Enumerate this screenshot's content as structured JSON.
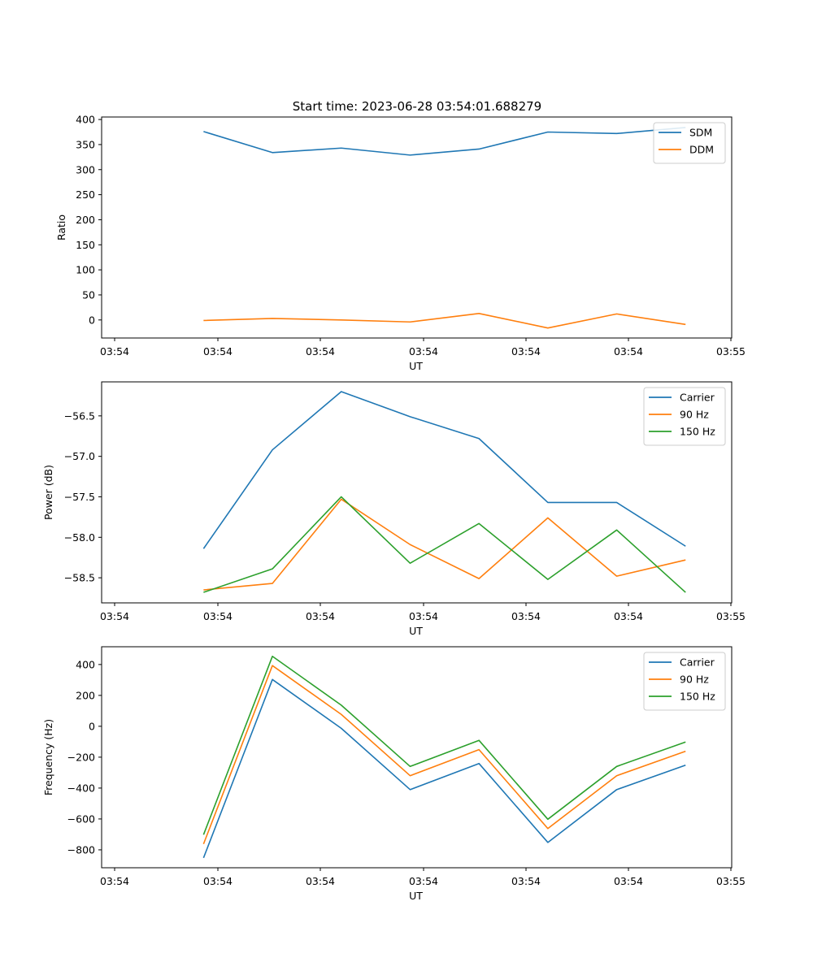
{
  "figure": {
    "title": "Start time: 2023-06-28 03:54:01.688279"
  },
  "chart_data": [
    {
      "type": "line",
      "xlabel": "UT",
      "ylabel": "Ratio",
      "xtick_labels": [
        "03:54",
        "03:54",
        "03:54",
        "03:54",
        "03:54",
        "03:54",
        "03:54"
      ],
      "xtick_last": "03:55",
      "ylim": [
        -36,
        405
      ],
      "yticks": [
        0,
        50,
        100,
        150,
        200,
        250,
        300,
        350,
        400
      ],
      "ytick_labels": [
        "0",
        "50",
        "100",
        "150",
        "200",
        "250",
        "300",
        "350",
        "400"
      ],
      "x_span": [
        -1.48,
        7.67
      ],
      "x_points": [
        0,
        1,
        2,
        3,
        4,
        5,
        6,
        7
      ],
      "legend": "top-right",
      "grid": false,
      "series": [
        {
          "name": "SDM",
          "color": "#1f77b4",
          "values": [
            376,
            334,
            343,
            329,
            341,
            375,
            372,
            384
          ]
        },
        {
          "name": "DDM",
          "color": "#ff7f0e",
          "values": [
            -1,
            3,
            0,
            -4,
            13,
            -16,
            12,
            -9
          ]
        }
      ]
    },
    {
      "type": "line",
      "xlabel": "UT",
      "ylabel": "Power (dB)",
      "xtick_labels": [
        "03:54",
        "03:54",
        "03:54",
        "03:54",
        "03:54",
        "03:54",
        "03:54"
      ],
      "xtick_last": "03:55",
      "ylim": [
        -58.81,
        -56.08
      ],
      "yticks": [
        -58.5,
        -58.0,
        -57.5,
        -57.0,
        -56.5
      ],
      "ytick_labels": [
        "−58.5",
        "−58.0",
        "−57.5",
        "−57.0",
        "−56.5"
      ],
      "x_span": [
        -1.48,
        7.67
      ],
      "x_points": [
        0,
        1,
        2,
        3,
        4,
        5,
        6,
        7
      ],
      "legend": "top-right",
      "grid": false,
      "series": [
        {
          "name": "Carrier",
          "color": "#1f77b4",
          "values": [
            -58.14,
            -56.92,
            -56.2,
            -56.51,
            -56.78,
            -57.57,
            -57.57,
            -58.11
          ]
        },
        {
          "name": "90 Hz",
          "color": "#ff7f0e",
          "values": [
            -58.65,
            -58.57,
            -57.53,
            -58.09,
            -58.51,
            -57.76,
            -58.48,
            -58.28
          ]
        },
        {
          "name": "150 Hz",
          "color": "#2ca02c",
          "values": [
            -58.68,
            -58.39,
            -57.5,
            -58.32,
            -57.83,
            -58.52,
            -57.91,
            -58.68
          ]
        }
      ]
    },
    {
      "type": "line",
      "xlabel": "UT",
      "ylabel": "Frequency (Hz)",
      "xtick_labels": [
        "03:54",
        "03:54",
        "03:54",
        "03:54",
        "03:54",
        "03:54",
        "03:54"
      ],
      "xtick_last": "03:55",
      "ylim": [
        -916,
        515
      ],
      "yticks": [
        -800,
        -600,
        -400,
        -200,
        0,
        200,
        400
      ],
      "ytick_labels": [
        "−800",
        "−600",
        "−400",
        "−200",
        "0",
        "200",
        "400"
      ],
      "x_span": [
        -1.48,
        7.67
      ],
      "x_points": [
        0,
        1,
        2,
        3,
        4,
        5,
        6,
        7
      ],
      "legend": "top-right",
      "grid": false,
      "series": [
        {
          "name": "Carrier",
          "color": "#1f77b4",
          "values": [
            -852,
            303,
            -13,
            -410,
            -241,
            -752,
            -410,
            -252
          ]
        },
        {
          "name": "90 Hz",
          "color": "#ff7f0e",
          "values": [
            -762,
            393,
            77,
            -320,
            -151,
            -662,
            -320,
            -162
          ]
        },
        {
          "name": "150 Hz",
          "color": "#2ca02c",
          "values": [
            -702,
            453,
            137,
            -260,
            -91,
            -602,
            -260,
            -102
          ]
        }
      ]
    }
  ]
}
